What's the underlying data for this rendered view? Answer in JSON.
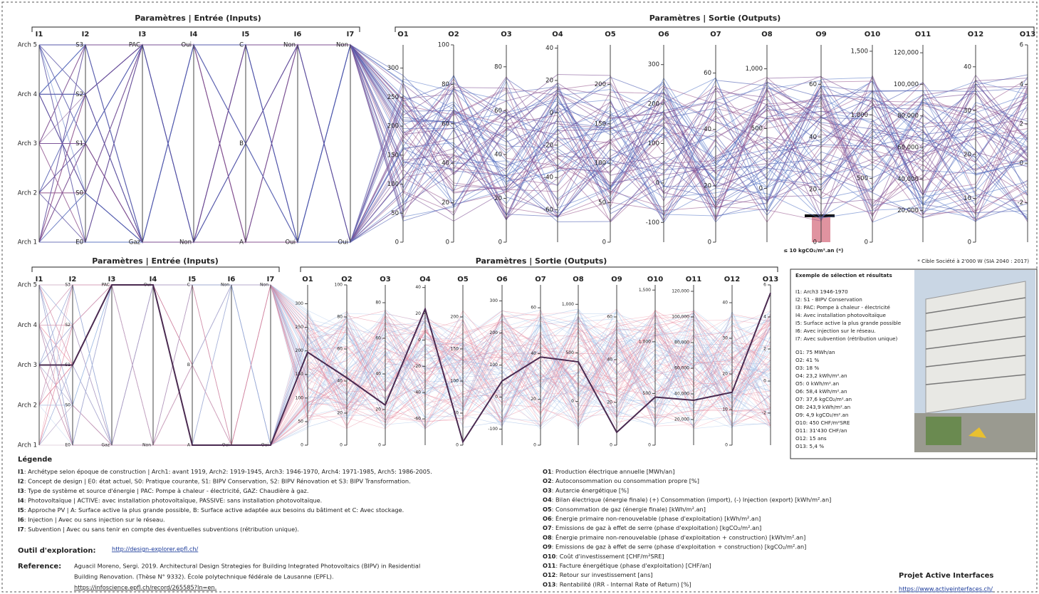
{
  "header_inputs": "Paramètres | Entrée (Inputs)",
  "header_outputs": "Paramètres | Sortie (Outputs)",
  "axes": [
    {
      "name": "I1",
      "categories": [
        "Arch 1",
        "Arch 2",
        "Arch 3",
        "Arch 4",
        "Arch 5"
      ]
    },
    {
      "name": "I2",
      "categories": [
        "E0",
        "S0",
        "S1",
        "S2",
        "S3"
      ]
    },
    {
      "name": "I3",
      "categories": [
        "Gaz",
        "PAC"
      ]
    },
    {
      "name": "I4",
      "categories": [
        "Non",
        "Oui"
      ]
    },
    {
      "name": "I5",
      "categories": [
        "A",
        "B",
        "C"
      ]
    },
    {
      "name": "I6",
      "categories": [
        "Oui",
        "Non"
      ]
    },
    {
      "name": "I7",
      "categories": [
        "Oui",
        "Non"
      ]
    },
    {
      "name": "O1",
      "ylim": [
        0,
        340
      ],
      "yticks": [
        0,
        50,
        100,
        150,
        200,
        250,
        300
      ]
    },
    {
      "name": "O2",
      "ylim": [
        0,
        100
      ],
      "yticks": [
        0,
        20,
        40,
        60,
        80,
        100
      ]
    },
    {
      "name": "O3",
      "ylim": [
        0,
        90
      ],
      "yticks": [
        0,
        20,
        40,
        60,
        80
      ]
    },
    {
      "name": "O4",
      "ylim": [
        -80,
        42
      ],
      "yticks": [
        -60,
        -40,
        -20,
        0,
        20,
        40
      ]
    },
    {
      "name": "O5",
      "ylim": [
        0,
        250
      ],
      "yticks": [
        0,
        50,
        100,
        150,
        200
      ]
    },
    {
      "name": "O6",
      "ylim": [
        -150,
        350
      ],
      "yticks": [
        -100,
        0,
        100,
        200,
        300
      ]
    },
    {
      "name": "O7",
      "ylim": [
        0,
        70
      ],
      "yticks": [
        0,
        20,
        40,
        60
      ]
    },
    {
      "name": "O8",
      "ylim": [
        -450,
        1200
      ],
      "yticks": [
        0,
        500,
        {
          "value": 1000,
          "label": "1,000"
        }
      ]
    },
    {
      "name": "O9",
      "ylim": [
        0,
        75
      ],
      "yticks": [
        0,
        20,
        40,
        60
      ]
    },
    {
      "name": "O10",
      "ylim": [
        0,
        1550
      ],
      "yticks": [
        0,
        500,
        {
          "value": 1000,
          "label": "1,000"
        },
        {
          "value": 1500,
          "label": "1,500"
        }
      ]
    },
    {
      "name": "O11",
      "ylim": [
        0,
        125000
      ],
      "yticks": [
        {
          "value": 20000,
          "label": "20,000"
        },
        {
          "value": 40000,
          "label": "40,000"
        },
        {
          "value": 60000,
          "label": "60,000"
        },
        {
          "value": 80000,
          "label": "80,000"
        },
        {
          "value": 100000,
          "label": "100,000"
        },
        {
          "value": 120000,
          "label": "120,000"
        }
      ]
    },
    {
      "name": "O12",
      "ylim": [
        0,
        45
      ],
      "yticks": [
        0,
        10,
        20,
        30,
        40
      ]
    },
    {
      "name": "O13",
      "ylim": [
        -4,
        6
      ],
      "yticks": [
        -2,
        0,
        2,
        4,
        6
      ]
    }
  ],
  "target_label": "≤ 10 kgCO₂/m².an (*)",
  "target_note": "* Cible Société à 2'000 W (SIA 2040 : 2017)",
  "selection": {
    "title": "Exemple de sélection et résultats",
    "items": [
      "I1: Arch3 1946-1970",
      "I2: S1 - BIPV Conservation",
      "I3: PAC: Pompe à chaleur - électricité",
      "I4: Avec installation photovoltaïque",
      "I5: Surface active la plus grande possible",
      "I6: Avec injection sur le réseau.",
      "I7: Avec subvention (rétribution unique)",
      "O1: 75 MWh/an",
      "O2: 41 %",
      "O3: 18 %",
      "O4: 23,2 kWh/m².an",
      "O5: 0 kWh/m².an",
      "O6: 58,4 kWh/m².an",
      "O7: 37,6 kgCO₂/m².an",
      "O8: 243,9 kWh/m².an",
      "O9: 4,9 kgCO₂/m².an",
      "O10: 450 CHF/m²SRE",
      "O11: 31'430 CHF/an",
      "O12: 15 ans",
      "O13: 5,4 %"
    ]
  },
  "legend": {
    "title": "Légende",
    "inputs": [
      {
        "key": "I1",
        "text": ": Archétype selon époque de construction | Arch1: avant 1919, Arch2: 1919-1945, Arch3: 1946-1970, Arch4: 1971-1985, Arch5: 1986-2005."
      },
      {
        "key": "I2",
        "text": ": Concept de design | E0: état actuel, S0: Pratique courante, S1: BIPV Conservation, S2: BIPV Rénovation et S3: BIPV Transformation."
      },
      {
        "key": "I3",
        "text": ": Type de système et source d'énergie | PAC: Pompe à chaleur - électricité, GAZ: Chaudière à gaz."
      },
      {
        "key": "I4",
        "text": ": Photovoltaïque | ACTIVE: avec installation photovoltaïque, PASSIVE: sans installation photovoltaïque."
      },
      {
        "key": "I5",
        "text": ": Approche PV | A: Surface active la plus grande possible, B: Surface active adaptée aux besoins du bâtiment et C: Avec stockage."
      },
      {
        "key": "I6",
        "text": ": Injection | Avec ou sans injection sur le réseau."
      },
      {
        "key": "I7",
        "text": ": Subvention | Avec ou sans tenir en compte des éventuelles subventions (rétribution unique)."
      }
    ],
    "outputs": [
      {
        "key": "O1",
        "text": ": Production électrique annuelle [MWh/an]"
      },
      {
        "key": "O2",
        "text": ": Autoconsommation ou consommation propre [%]"
      },
      {
        "key": "O3",
        "text": ": Autarcie énergétique [%]"
      },
      {
        "key": "O4",
        "text": ": Bilan électrique (énergie finale) (+) Consommation (import), (-) Injection (export) [kWh/m².an]"
      },
      {
        "key": "O5",
        "text": ": Consommation de gaz (énergie finale) [kWh/m².an]"
      },
      {
        "key": "O6",
        "text": ": Énergie primaire non-renouvelable (phase d'exploitation) [kWh/m².an]"
      },
      {
        "key": "O7",
        "text": ": Emissions de gaz à effet de serre (phase d'exploitation) [kgCO₂/m².an]"
      },
      {
        "key": "O8",
        "text": ": Énergie primaire non-renouvelable (phase d'exploitation + construction) [kWh/m².an]"
      },
      {
        "key": "O9",
        "text": ": Emissions de gaz à effet de serre (phase d'exploitation + construction) [kgCO₂/m².an]"
      },
      {
        "key": "O10",
        "text": ": Coût d'investissement [CHF/m²SRE]"
      },
      {
        "key": "O11",
        "text": ": Facture énergétique (phase d'exploitation) [CHF/an]"
      },
      {
        "key": "O12",
        "text": ": Retour sur investissement [ans]"
      },
      {
        "key": "O13",
        "text": ": Rentabilité (IRR - Internal Rate of Return) [%]"
      }
    ]
  },
  "tool": {
    "label": "Outil d'exploration:",
    "url": "http://design-explorer.epfl.ch/"
  },
  "reference": {
    "label": "Reference:",
    "lines": [
      "Aguacil Moreno, Sergi. 2019. Architectural Design Strategies for Building Integrated Photovoltaics (BIPV) in Residential",
      "Building Renovation. (Thèse N° 9332). École polytechnique fédérale de Lausanne (EPFL).",
      "https://infoscience.epfl.ch/record/265585?ln=en."
    ]
  },
  "project": {
    "title": "Projet Active Interfaces",
    "url": "https://www.activeinterfaces.ch/"
  }
}
